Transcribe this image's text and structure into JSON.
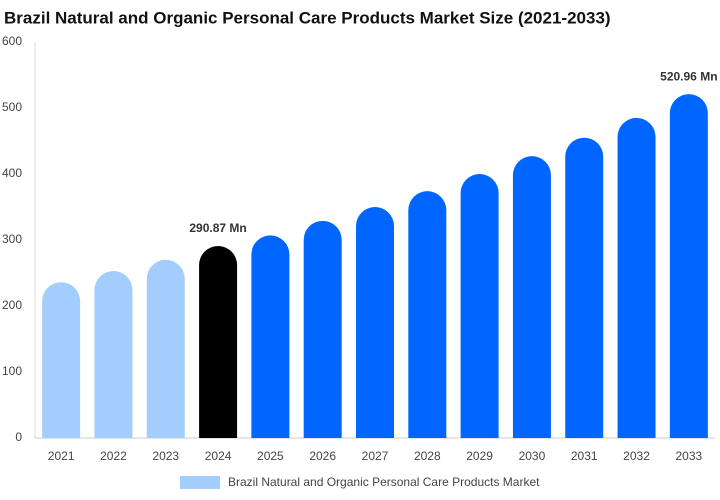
{
  "chart_data": {
    "type": "bar",
    "title": "Brazil Natural and Organic Personal Care Products Market Size (2021-2033)",
    "categories": [
      "2021",
      "2022",
      "2023",
      "2024",
      "2025",
      "2026",
      "2027",
      "2028",
      "2029",
      "2030",
      "2031",
      "2032",
      "2033"
    ],
    "series": [
      {
        "name": "Brazil Natural and Organic Personal Care Products Market",
        "color": "#a3cdfd",
        "colors": [
          "#a3cdfd",
          "#a3cdfd",
          "#a3cdfd",
          "#000000",
          "#0066ff",
          "#0066ff",
          "#0066ff",
          "#0066ff",
          "#0066ff",
          "#0066ff",
          "#0066ff",
          "#0066ff",
          "#0066ff"
        ],
        "values": [
          236,
          253,
          270,
          290.87,
          307,
          329,
          350,
          374,
          400,
          427,
          455,
          485,
          520.96
        ],
        "value_labels": [
          null,
          null,
          null,
          "290.87 Mn",
          null,
          null,
          null,
          null,
          null,
          null,
          null,
          null,
          "520.96 Mn"
        ]
      }
    ],
    "ylim": [
      0,
      600
    ],
    "yticks": [
      0,
      100,
      200,
      300,
      400,
      500,
      600
    ],
    "grid": false,
    "legend": "bottom"
  }
}
